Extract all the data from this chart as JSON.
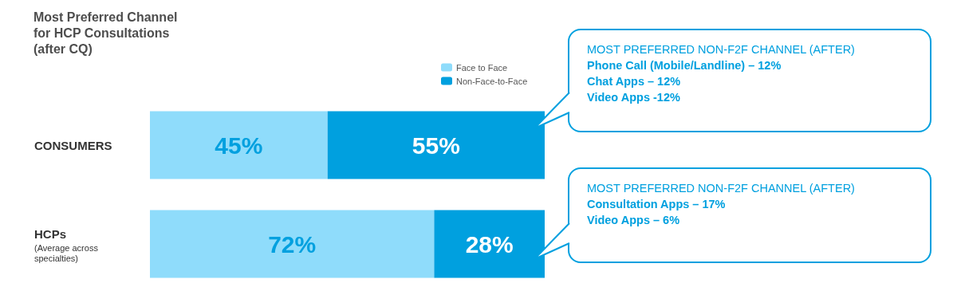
{
  "chart_data": {
    "type": "bar",
    "orientation": "horizontal",
    "stacked": true,
    "title": "Most Preferred Channel\nfor HCP Consultations\n(after CQ)",
    "categories": [
      "CONSUMERS",
      "HCPs\n(Average across\nspecialties)"
    ],
    "series": [
      {
        "name": "Face to Face",
        "color": "#8fdcfb",
        "values": [
          45,
          72
        ],
        "value_labels": [
          "45%",
          "72%"
        ]
      },
      {
        "name": "Non-Face-to-Face",
        "color": "#00a0df",
        "values": [
          55,
          28
        ],
        "value_labels": [
          "55%",
          "28%"
        ]
      }
    ],
    "tick_labels": "y",
    "legend": "top right",
    "annotations": [
      "MOST PREFERRED NON-F2F CHANNEL (AFTER)\nPhone Call (Mobile/Landline) – 12%\nChat Apps – 12%\nVideo Apps -12%",
      "MOST PREFERRED NON-F2F CHANNEL (AFTER)\nConsultation Apps – 17%\nVideo Apps – 6%"
    ]
  }
}
